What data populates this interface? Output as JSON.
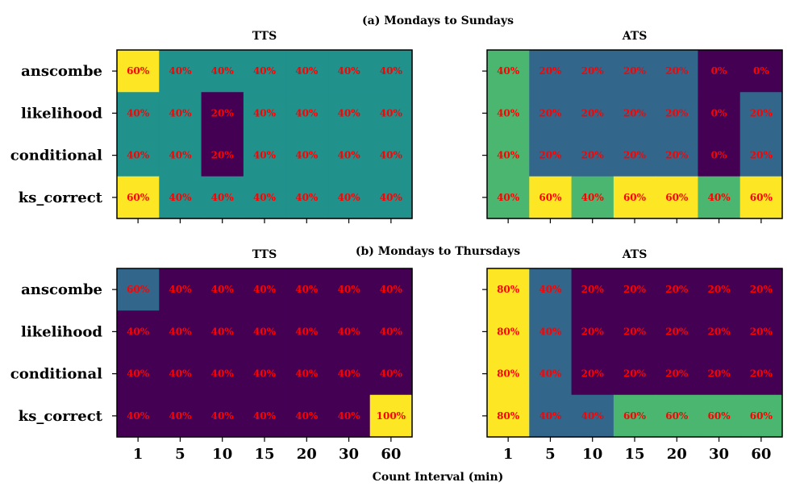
{
  "chart_data": {
    "type": "heatmap",
    "xlabel": "Count Interval (min)",
    "x_categories": [
      "1",
      "5",
      "10",
      "15",
      "20",
      "30",
      "60"
    ],
    "y_categories": [
      "anscombe",
      "likelihood",
      "conditional",
      "ks_correct"
    ],
    "colormap": "viridis",
    "colors": {
      "viridis_low": "#440154",
      "viridis_mid_low": "#31688e",
      "viridis_mid": "#21918c",
      "viridis_mid_high": "#35b779",
      "viridis_high": "#fde725",
      "label_color": "#ff0000"
    },
    "sections": [
      {
        "title": "(a) Mondays to Sundays",
        "panels": [
          {
            "title": "TTS",
            "values": [
              [
                60,
                40,
                40,
                40,
                40,
                40,
                40
              ],
              [
                40,
                40,
                20,
                40,
                40,
                40,
                40
              ],
              [
                40,
                40,
                20,
                40,
                40,
                40,
                40
              ],
              [
                60,
                40,
                40,
                40,
                40,
                40,
                40
              ]
            ],
            "labels": [
              [
                "60%",
                "40%",
                "40%",
                "40%",
                "40%",
                "40%",
                "40%"
              ],
              [
                "40%",
                "40%",
                "20%",
                "40%",
                "40%",
                "40%",
                "40%"
              ],
              [
                "40%",
                "40%",
                "20%",
                "40%",
                "40%",
                "40%",
                "40%"
              ],
              [
                "60%",
                "40%",
                "40%",
                "40%",
                "40%",
                "40%",
                "40%"
              ]
            ]
          },
          {
            "title": "ATS",
            "values": [
              [
                40,
                20,
                20,
                20,
                20,
                0,
                0
              ],
              [
                40,
                20,
                20,
                20,
                20,
                0,
                20
              ],
              [
                40,
                20,
                20,
                20,
                20,
                0,
                20
              ],
              [
                40,
                60,
                40,
                60,
                60,
                40,
                60
              ]
            ],
            "labels": [
              [
                "40%",
                "20%",
                "20%",
                "20%",
                "20%",
                "0%",
                "0%"
              ],
              [
                "40%",
                "20%",
                "20%",
                "20%",
                "20%",
                "0%",
                "20%"
              ],
              [
                "40%",
                "20%",
                "20%",
                "20%",
                "20%",
                "0%",
                "20%"
              ],
              [
                "40%",
                "60%",
                "40%",
                "60%",
                "60%",
                "40%",
                "60%"
              ]
            ]
          }
        ]
      },
      {
        "title": "(b) Mondays to Thursdays",
        "panels": [
          {
            "title": "TTS",
            "values": [
              [
                60,
                40,
                40,
                40,
                40,
                40,
                40
              ],
              [
                40,
                40,
                40,
                40,
                40,
                40,
                40
              ],
              [
                40,
                40,
                40,
                40,
                40,
                40,
                40
              ],
              [
                40,
                40,
                40,
                40,
                40,
                40,
                100
              ]
            ],
            "labels": [
              [
                "60%",
                "40%",
                "40%",
                "40%",
                "40%",
                "40%",
                "40%"
              ],
              [
                "40%",
                "40%",
                "40%",
                "40%",
                "40%",
                "40%",
                "40%"
              ],
              [
                "40%",
                "40%",
                "40%",
                "40%",
                "40%",
                "40%",
                "40%"
              ],
              [
                "40%",
                "40%",
                "40%",
                "40%",
                "40%",
                "40%",
                "100%"
              ]
            ]
          },
          {
            "title": "ATS",
            "values": [
              [
                80,
                40,
                20,
                20,
                20,
                20,
                20
              ],
              [
                80,
                40,
                20,
                20,
                20,
                20,
                20
              ],
              [
                80,
                40,
                20,
                20,
                20,
                20,
                20
              ],
              [
                80,
                40,
                40,
                60,
                60,
                60,
                60
              ]
            ],
            "labels": [
              [
                "80%",
                "40%",
                "20%",
                "20%",
                "20%",
                "20%",
                "20%"
              ],
              [
                "80%",
                "40%",
                "20%",
                "20%",
                "20%",
                "20%",
                "20%"
              ],
              [
                "80%",
                "40%",
                "20%",
                "20%",
                "20%",
                "20%",
                "20%"
              ],
              [
                "80%",
                "40%",
                "40%",
                "60%",
                "60%",
                "60%",
                "60%"
              ]
            ]
          }
        ]
      }
    ]
  }
}
